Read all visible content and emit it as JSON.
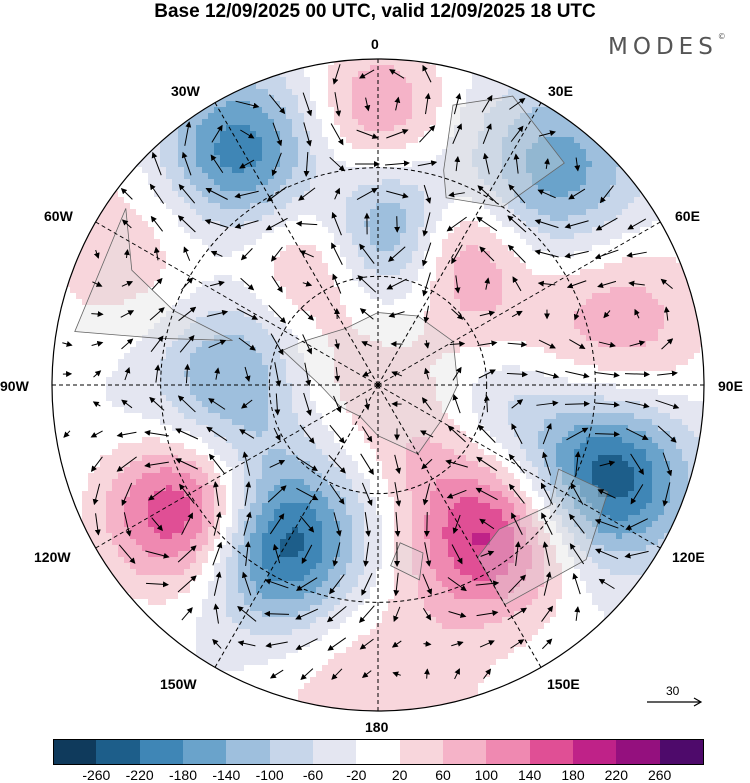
{
  "title": "Base 12/09/2025 00 UTC, valid 12/09/2025 18 UTC",
  "brand": {
    "name": "MODES",
    "mark": "©"
  },
  "longitude_labels": [
    "0",
    "30E",
    "60E",
    "90E",
    "120E",
    "150E",
    "180",
    "150W",
    "120W",
    "90W",
    "60W",
    "30W"
  ],
  "vector_reference": {
    "speed": "30"
  },
  "colorbar": {
    "colors": [
      "#0f3a5c",
      "#1d5e8a",
      "#3f86b6",
      "#6aa3cb",
      "#9ebfdd",
      "#c7d6ea",
      "#e4e6f1",
      "#ffffff",
      "#f8d6dc",
      "#f5b3c8",
      "#ef89b1",
      "#e04f95",
      "#bf2288",
      "#94107e",
      "#4e0a6b"
    ],
    "tick_labels": [
      "-260",
      "-220",
      "-180",
      "-140",
      "-100",
      "-60",
      "-20",
      "20",
      "60",
      "100",
      "140",
      "180",
      "220",
      "260"
    ]
  },
  "anomaly_centers": [
    {
      "lon": 5,
      "colat": 41,
      "value": -250,
      "scale": 1.0
    },
    {
      "lon": -20,
      "colat": 38,
      "value": 150,
      "scale": 1.1
    },
    {
      "lon": 28,
      "colat": 44,
      "value": 170,
      "scale": 0.9
    },
    {
      "lon": -31,
      "colat": 74,
      "value": -200,
      "scale": 1.1
    },
    {
      "lon": 0,
      "colat": 76,
      "value": 120,
      "scale": 1.0
    },
    {
      "lon": 40,
      "colat": 76,
      "value": -150,
      "scale": 1.2
    },
    {
      "lon": 75,
      "colat": 68,
      "value": 110,
      "scale": 1.3
    },
    {
      "lon": 112,
      "colat": 68,
      "value": -240,
      "scale": 1.1
    },
    {
      "lon": 143,
      "colat": 52,
      "value": 210,
      "scale": 1.1
    },
    {
      "lon": -148,
      "colat": 52,
      "value": -250,
      "scale": 1.1
    },
    {
      "lon": -123,
      "colat": 62,
      "value": 270,
      "scale": 1.1
    },
    {
      "lon": -105,
      "colat": 43,
      "value": -120,
      "scale": 1.3
    },
    {
      "lon": -60,
      "colat": 78,
      "value": 70,
      "scale": 1.5
    },
    {
      "lon": 130,
      "colat": 20,
      "value": 90,
      "scale": 1.0
    },
    {
      "lon": 100,
      "colat": 30,
      "value": -100,
      "scale": 1.0
    },
    {
      "lon": -100,
      "colat": 15,
      "value": 60,
      "scale": 1.0
    },
    {
      "lon": 180,
      "colat": 85,
      "value": 80,
      "scale": 1.5
    },
    {
      "lon": -75,
      "colat": 40,
      "value": -70,
      "scale": 1.0
    },
    {
      "lon": 60,
      "colat": 30,
      "value": 60,
      "scale": 1.0
    }
  ]
}
